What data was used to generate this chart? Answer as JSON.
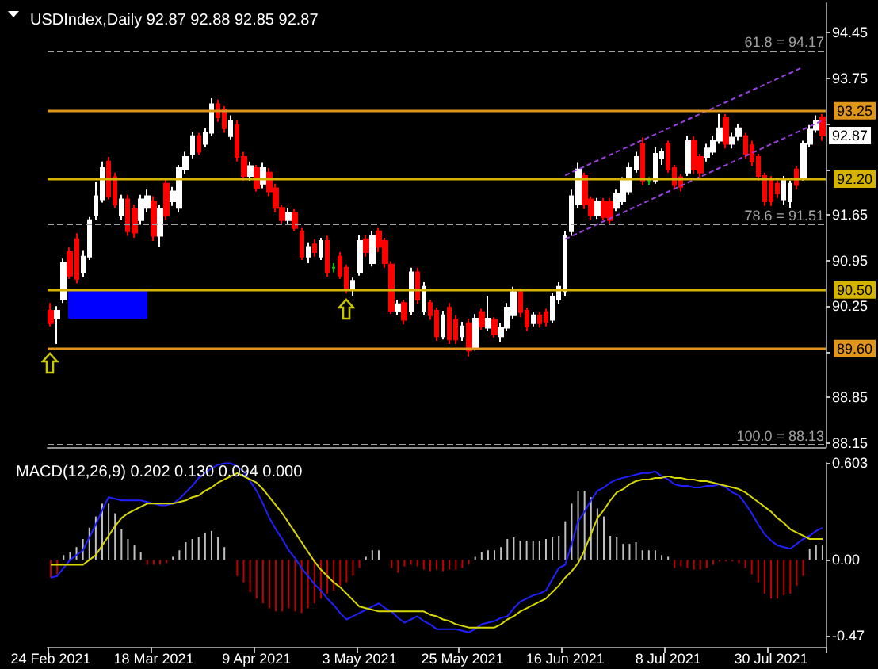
{
  "chart_data": [
    {
      "type": "candlestick",
      "title": "USDIndex,Daily 92.87 92.88 92.85 92.87",
      "categories": [
        null,
        null,
        null,
        null,
        null,
        null,
        null,
        null,
        null,
        null,
        null,
        null,
        null,
        null,
        null,
        null,
        null,
        null,
        null,
        null,
        null,
        null,
        null,
        null,
        null,
        null,
        null,
        null,
        null,
        null,
        null,
        null,
        null,
        null,
        null,
        null,
        null,
        null,
        null,
        null,
        null,
        null,
        null,
        null,
        null,
        null,
        null,
        null,
        null,
        null,
        null,
        null,
        null,
        null,
        null,
        null,
        null,
        null,
        null,
        null,
        null,
        null,
        null,
        null,
        null,
        null,
        null,
        null,
        null,
        null,
        null,
        null,
        null,
        null,
        null,
        null,
        null,
        null,
        null,
        null,
        null,
        null,
        null,
        null,
        null,
        null,
        null,
        null,
        null,
        null,
        null,
        null,
        null,
        null,
        null,
        null,
        null,
        null,
        null,
        null,
        null,
        null,
        null,
        null,
        null,
        null,
        null,
        null,
        null,
        null,
        null,
        null,
        null,
        null,
        null,
        null,
        null,
        null,
        null,
        null,
        null
      ],
      "ohlc": [
        [
          90.18,
          90.3,
          89.94,
          89.99
        ],
        [
          90.06,
          90.25,
          89.67,
          90.18
        ],
        [
          90.35,
          90.98,
          90.3,
          90.91
        ],
        [
          91.08,
          91.15,
          90.67,
          90.72
        ],
        [
          91.28,
          91.37,
          90.6,
          90.67
        ],
        [
          90.77,
          91.1,
          90.7,
          91.01
        ],
        [
          91.01,
          91.62,
          90.96,
          91.57
        ],
        [
          91.64,
          92.16,
          91.57,
          91.94
        ],
        [
          91.89,
          92.47,
          91.84,
          92.37
        ],
        [
          92.47,
          92.54,
          91.89,
          91.94
        ],
        [
          92.23,
          92.3,
          91.76,
          91.81
        ],
        [
          91.64,
          91.96,
          91.57,
          91.89
        ],
        [
          91.89,
          91.96,
          91.33,
          91.4
        ],
        [
          91.74,
          91.81,
          91.3,
          91.38
        ],
        [
          91.57,
          91.96,
          91.5,
          91.89
        ],
        [
          91.76,
          92.04,
          91.69,
          91.94
        ],
        [
          91.86,
          91.94,
          91.25,
          91.33
        ],
        [
          91.33,
          91.81,
          91.16,
          91.74
        ],
        [
          92.13,
          92.2,
          91.57,
          91.64
        ],
        [
          91.86,
          92.08,
          91.79,
          92.01
        ],
        [
          91.76,
          92.42,
          91.69,
          92.37
        ],
        [
          92.35,
          92.62,
          92.28,
          92.54
        ],
        [
          92.59,
          92.93,
          92.52,
          92.86
        ],
        [
          92.86,
          92.91,
          92.57,
          92.62
        ],
        [
          92.74,
          92.98,
          92.69,
          92.91
        ],
        [
          92.91,
          93.44,
          92.86,
          93.35
        ],
        [
          93.35,
          93.42,
          93.08,
          93.15
        ],
        [
          93.27,
          93.32,
          92.91,
          92.98
        ],
        [
          92.86,
          93.18,
          92.81,
          93.1
        ],
        [
          93.03,
          93.1,
          92.47,
          92.54
        ],
        [
          92.54,
          92.62,
          92.18,
          92.25
        ],
        [
          92.25,
          92.47,
          92.18,
          92.4
        ],
        [
          92.37,
          92.42,
          92.01,
          92.06
        ],
        [
          92.13,
          92.45,
          92.06,
          92.37
        ],
        [
          92.3,
          92.37,
          91.94,
          92.01
        ],
        [
          92.06,
          92.13,
          91.69,
          91.76
        ],
        [
          91.76,
          91.81,
          91.5,
          91.57
        ],
        [
          91.57,
          91.76,
          91.52,
          91.69
        ],
        [
          91.69,
          91.74,
          91.4,
          91.45
        ],
        [
          91.4,
          91.45,
          90.96,
          91.01
        ],
        [
          91.01,
          91.23,
          90.91,
          91.16
        ],
        [
          91.2,
          91.28,
          91.01,
          91.08
        ],
        [
          91.01,
          91.3,
          90.96,
          91.25
        ],
        [
          91.25,
          91.33,
          90.7,
          90.77
        ],
        [
          90.84,
          90.91,
          90.77,
          90.84
        ],
        [
          91.01,
          91.08,
          90.67,
          90.72
        ],
        [
          90.84,
          90.89,
          90.45,
          90.52
        ],
        [
          90.52,
          90.69,
          90.4,
          90.64
        ],
        [
          90.77,
          91.35,
          90.72,
          91.25
        ],
        [
          91.28,
          91.35,
          91.01,
          91.08
        ],
        [
          90.91,
          91.4,
          90.86,
          91.33
        ],
        [
          91.4,
          91.45,
          91.08,
          91.16
        ],
        [
          91.25,
          91.3,
          90.84,
          90.91
        ],
        [
          90.89,
          90.94,
          90.13,
          90.18
        ],
        [
          90.18,
          90.35,
          90.11,
          90.28
        ],
        [
          90.3,
          90.35,
          89.97,
          90.04
        ],
        [
          90.18,
          90.84,
          90.11,
          90.77
        ],
        [
          90.77,
          90.84,
          90.28,
          90.35
        ],
        [
          90.18,
          90.62,
          90.11,
          90.55
        ],
        [
          90.3,
          90.35,
          90.04,
          90.11
        ],
        [
          90.18,
          90.23,
          89.72,
          89.79
        ],
        [
          89.79,
          90.18,
          89.74,
          90.11
        ],
        [
          90.23,
          90.3,
          89.67,
          89.74
        ],
        [
          90.04,
          90.11,
          89.67,
          89.74
        ],
        [
          89.79,
          90.01,
          89.72,
          89.94
        ],
        [
          89.99,
          90.06,
          89.48,
          89.57
        ],
        [
          89.62,
          90.13,
          89.57,
          90.06
        ],
        [
          90.16,
          90.21,
          89.89,
          89.94
        ],
        [
          89.92,
          90.4,
          89.87,
          90.06
        ],
        [
          90.04,
          90.08,
          89.77,
          89.82
        ],
        [
          89.79,
          89.99,
          89.7,
          89.92
        ],
        [
          89.92,
          90.3,
          89.87,
          90.23
        ],
        [
          90.11,
          90.55,
          90.06,
          90.47
        ],
        [
          90.47,
          90.52,
          90.08,
          90.16
        ],
        [
          90.18,
          90.23,
          89.87,
          89.94
        ],
        [
          89.99,
          90.16,
          89.94,
          90.11
        ],
        [
          90.11,
          90.16,
          89.92,
          89.99
        ],
        [
          90.16,
          90.21,
          89.94,
          90.01
        ],
        [
          90.04,
          90.45,
          89.99,
          90.4
        ],
        [
          90.35,
          90.62,
          90.28,
          90.55
        ],
        [
          90.47,
          91.4,
          90.4,
          91.33
        ],
        [
          91.4,
          92.04,
          91.33,
          91.94
        ],
        [
          91.81,
          92.45,
          91.76,
          92.35
        ],
        [
          92.25,
          92.3,
          91.74,
          91.81
        ],
        [
          91.89,
          91.94,
          91.57,
          91.64
        ],
        [
          91.64,
          91.91,
          91.59,
          91.86
        ],
        [
          91.86,
          91.91,
          91.57,
          91.62
        ],
        [
          91.86,
          91.91,
          91.5,
          91.57
        ],
        [
          91.76,
          92.04,
          91.71,
          91.98
        ],
        [
          91.86,
          92.23,
          91.81,
          92.18
        ],
        [
          92.01,
          92.45,
          91.96,
          92.37
        ],
        [
          92.35,
          92.62,
          92.3,
          92.54
        ],
        [
          92.74,
          92.84,
          92.11,
          92.18
        ],
        [
          92.18,
          92.23,
          92.11,
          92.18
        ],
        [
          92.18,
          92.69,
          92.13,
          92.59
        ],
        [
          92.52,
          92.67,
          92.42,
          92.62
        ],
        [
          92.74,
          92.79,
          92.3,
          92.35
        ],
        [
          92.37,
          92.42,
          92.04,
          92.11
        ],
        [
          92.23,
          92.28,
          92.01,
          92.08
        ],
        [
          92.3,
          92.86,
          92.25,
          92.79
        ],
        [
          92.79,
          92.86,
          92.28,
          92.35
        ],
        [
          92.54,
          92.59,
          92.23,
          92.3
        ],
        [
          92.54,
          92.74,
          92.47,
          92.67
        ],
        [
          92.62,
          92.86,
          92.57,
          92.79
        ],
        [
          92.79,
          93.2,
          92.74,
          92.98
        ],
        [
          93.15,
          93.2,
          92.67,
          92.74
        ],
        [
          92.74,
          92.91,
          92.67,
          92.84
        ],
        [
          92.86,
          93.05,
          92.79,
          92.98
        ],
        [
          92.86,
          92.91,
          92.52,
          92.59
        ],
        [
          92.72,
          92.79,
          92.4,
          92.47
        ],
        [
          92.54,
          92.59,
          92.18,
          92.25
        ],
        [
          92.25,
          92.3,
          91.79,
          91.86
        ],
        [
          92.18,
          92.25,
          91.79,
          91.86
        ],
        [
          92.13,
          92.18,
          91.91,
          91.98
        ],
        [
          91.89,
          92.25,
          91.81,
          92.18
        ],
        [
          91.86,
          92.18,
          91.76,
          92.13
        ],
        [
          92.35,
          92.4,
          92.04,
          92.11
        ],
        [
          92.23,
          92.79,
          92.18,
          92.74
        ],
        [
          92.74,
          93.03,
          92.69,
          92.96
        ],
        [
          92.96,
          93.18,
          92.91,
          93.1
        ],
        [
          93.15,
          93.2,
          92.79,
          92.87
        ]
      ],
      "colors": [
        "#ff0000",
        "#ffffff",
        "#ffffff",
        "#ff0000",
        "#ff0000",
        "#ffffff",
        "#ffffff",
        "#ffffff",
        "#ffffff",
        "#ff0000",
        "#ff0000",
        "#ffffff",
        "#ff0000",
        "#ff0000",
        "#ffffff",
        "#ffffff",
        "#ff0000",
        "#ffffff",
        "#ff0000",
        "#ffffff",
        "#ffffff",
        "#ffffff",
        "#ffffff",
        "#ff0000",
        "#ffffff",
        "#ffffff",
        "#ff0000",
        "#ff0000",
        "#ffffff",
        "#ff0000",
        "#ff0000",
        "#ffffff",
        "#ff0000",
        "#ffffff",
        "#ff0000",
        "#ff0000",
        "#ff0000",
        "#ffffff",
        "#ff0000",
        "#ff0000",
        "#ffffff",
        "#ff0000",
        "#ffffff",
        "#ff0000",
        "#00c000",
        "#ff0000",
        "#ff0000",
        "#ffffff",
        "#ffffff",
        "#ff0000",
        "#ffffff",
        "#ff0000",
        "#ff0000",
        "#ff0000",
        "#ffffff",
        "#ff0000",
        "#ffffff",
        "#ff0000",
        "#ffffff",
        "#ff0000",
        "#ff0000",
        "#ffffff",
        "#ff0000",
        "#ff0000",
        "#ffffff",
        "#ff0000",
        "#ffffff",
        "#ff0000",
        "#ffffff",
        "#ff0000",
        "#ffffff",
        "#ffffff",
        "#ffffff",
        "#ff0000",
        "#ff0000",
        "#ffffff",
        "#ff0000",
        "#ff0000",
        "#ffffff",
        "#ffffff",
        "#ffffff",
        "#ffffff",
        "#ffffff",
        "#ff0000",
        "#ff0000",
        "#ffffff",
        "#ff0000",
        "#ff0000",
        "#ffffff",
        "#ffffff",
        "#ffffff",
        "#ffffff",
        "#ff0000",
        "#00c000",
        "#ffffff",
        "#ffffff",
        "#ff0000",
        "#ff0000",
        "#ff0000",
        "#ffffff",
        "#ff0000",
        "#ff0000",
        "#ffffff",
        "#ffffff",
        "#ffffff",
        "#ff0000",
        "#ffffff",
        "#ffffff",
        "#ff0000",
        "#ff0000",
        "#ff0000",
        "#ff0000",
        "#ff0000",
        "#ff0000",
        "#ffffff",
        "#ffffff",
        "#ff0000",
        "#ffffff",
        "#ffffff",
        "#ffffff",
        "#ff0000"
      ],
      "series": [
        {
          "type": "line",
          "color": "#9b40e0",
          "line_style": "dashed",
          "values": [
            null,
            null,
            null,
            null,
            null,
            null,
            null,
            null,
            null,
            null,
            null,
            null,
            null,
            null,
            null,
            null,
            null,
            null,
            null,
            null,
            null,
            null,
            null,
            null,
            null,
            null,
            null,
            null,
            null,
            null,
            null,
            null,
            null,
            null,
            null,
            null,
            null,
            null,
            null,
            null,
            null,
            null,
            null,
            null,
            null,
            null,
            null,
            null,
            null,
            null,
            null,
            null,
            null,
            null,
            null,
            null,
            null,
            null,
            null,
            null,
            null,
            null,
            null,
            null,
            null,
            null,
            null,
            null,
            null,
            null,
            null,
            null,
            null,
            null,
            null,
            null,
            null,
            null,
            null,
            null,
            92.26,
            null,
            null,
            null,
            null,
            null,
            null,
            null,
            null,
            null,
            null,
            null,
            null,
            null,
            null,
            null,
            null,
            null,
            null,
            null,
            null,
            null,
            null,
            null,
            null,
            null,
            null,
            null,
            null,
            null,
            null,
            null,
            null,
            null,
            null,
            null,
            null,
            93.92,
            null,
            null,
            null
          ]
        },
        {
          "type": "line",
          "color": "#9b40e0",
          "line_style": "dashed",
          "values": [
            null,
            null,
            null,
            null,
            null,
            null,
            null,
            null,
            null,
            null,
            null,
            null,
            null,
            null,
            null,
            null,
            null,
            null,
            null,
            null,
            null,
            null,
            null,
            null,
            null,
            null,
            null,
            null,
            null,
            null,
            null,
            null,
            null,
            null,
            null,
            null,
            null,
            null,
            null,
            null,
            null,
            null,
            null,
            null,
            null,
            null,
            null,
            null,
            null,
            null,
            null,
            null,
            null,
            null,
            null,
            null,
            null,
            null,
            null,
            null,
            null,
            null,
            null,
            null,
            null,
            null,
            null,
            null,
            null,
            null,
            null,
            null,
            null,
            null,
            null,
            null,
            null,
            null,
            null,
            null,
            91.28,
            null,
            null,
            null,
            null,
            null,
            null,
            null,
            null,
            null,
            null,
            null,
            null,
            null,
            null,
            null,
            null,
            null,
            null,
            null,
            null,
            null,
            null,
            null,
            null,
            null,
            null,
            null,
            null,
            null,
            null,
            null,
            null,
            null,
            null,
            null,
            null,
            null,
            null,
            null,
            93.1
          ]
        }
      ],
      "marker": "none",
      "ylim": [
        88.09,
        94.9
      ],
      "yticks": [
        94.45,
        93.75,
        {
          "value": 93.05,
          "label": null
        },
        {
          "value": 92.35,
          "label": null
        },
        91.65,
        90.95,
        90.25,
        {
          "value": 89.55,
          "label": null
        },
        88.85,
        88.15
      ],
      "tick_labels": "y",
      "ref_lines": [
        {
          "axis": "y",
          "value": 94.17,
          "label": "61.8 = 94.17",
          "color": "#a0a0a0",
          "line_style": "dashed"
        },
        {
          "axis": "y",
          "value": 93.25,
          "label": "93.25",
          "color": "#e0961c",
          "line_style": "solid"
        },
        {
          "axis": "y",
          "value": 92.2,
          "label": "92.20",
          "color": "#d4b400",
          "line_style": "solid"
        },
        {
          "axis": "y",
          "value": 91.51,
          "label": "78.6 = 91.51",
          "color": "#a0a0a0",
          "line_style": "dashed"
        },
        {
          "axis": "y",
          "value": 90.5,
          "label": "90.50",
          "color": "#d4b400",
          "line_style": "solid"
        },
        {
          "axis": "y",
          "value": 89.6,
          "label": "89.60",
          "color": "#e0961c",
          "line_style": "solid"
        },
        {
          "axis": "y",
          "value": 88.13,
          "label": "100.0 = 88.13",
          "color": "#a0a0a0",
          "line_style": "dashed"
        }
      ],
      "annotations": [
        {
          "text": "92.87",
          "y": 92.87
        }
      ]
    },
    {
      "type": "bar",
      "title": "MACD(12,26,9) 0.202 0.130 0.094 0.000",
      "categories": [
        "24 Feb 2021",
        null,
        null,
        null,
        null,
        null,
        null,
        null,
        null,
        null,
        null,
        null,
        null,
        null,
        null,
        null,
        "18 Mar 2021",
        null,
        null,
        null,
        null,
        null,
        null,
        null,
        null,
        null,
        null,
        null,
        null,
        null,
        null,
        null,
        "9 Apr 2021",
        null,
        null,
        null,
        null,
        null,
        null,
        null,
        null,
        null,
        null,
        null,
        null,
        null,
        null,
        null,
        "3 May 2021",
        null,
        null,
        null,
        null,
        null,
        null,
        null,
        null,
        null,
        null,
        null,
        null,
        null,
        null,
        null,
        "25 May 2021",
        null,
        null,
        null,
        null,
        null,
        null,
        null,
        null,
        null,
        null,
        null,
        null,
        null,
        null,
        null,
        "16 Jun 2021",
        null,
        null,
        null,
        null,
        null,
        null,
        null,
        null,
        null,
        null,
        null,
        null,
        null,
        null,
        null,
        "8 Jul 2021",
        null,
        null,
        null,
        null,
        null,
        null,
        null,
        null,
        null,
        null,
        null,
        null,
        null,
        null,
        null,
        "30 Jul 2021",
        null,
        null,
        null,
        null,
        null,
        null,
        null,
        null
      ],
      "series": [
        {
          "type": "bar",
          "color": "#c0c0c0",
          "values": [
            null,
            null,
            0.03,
            0.05,
            0.08,
            0.13,
            0.2,
            0.27,
            0.35,
            0.35,
            0.29,
            0.19,
            0.13,
            0.09,
            0.05,
            null,
            null,
            null,
            null,
            0.02,
            0.06,
            0.11,
            0.13,
            0.14,
            0.17,
            0.18,
            0.14,
            0.08,
            0,
            null,
            null,
            null,
            null,
            null,
            null,
            null,
            null,
            null,
            null,
            null,
            null,
            null,
            null,
            null,
            null,
            null,
            null,
            null,
            null,
            0.02,
            0.06,
            0.06,
            0,
            null,
            null,
            null,
            null,
            null,
            null,
            null,
            null,
            null,
            null,
            null,
            null,
            null,
            0.02,
            0.05,
            0.06,
            0.06,
            0.08,
            0.13,
            0.14,
            0.12,
            0.12,
            0.12,
            0.12,
            0.13,
            0.14,
            0.15,
            0.24,
            0.35,
            0.43,
            0.43,
            0.39,
            0.32,
            0.27,
            0.15,
            0.14,
            0.1,
            0.1,
            0.11,
            0.06,
            0.06,
            0.06,
            0.03,
            0.02,
            null,
            null,
            null,
            null,
            null,
            null,
            null,
            null,
            null,
            null,
            null,
            null,
            null,
            null,
            null,
            null,
            null,
            null,
            null,
            null,
            null,
            0.07,
            0.09,
            0.09
          ]
        },
        {
          "type": "bar",
          "color": "#c00000",
          "values": [
            -0.11,
            -0.09,
            null,
            null,
            null,
            null,
            null,
            null,
            null,
            null,
            null,
            null,
            null,
            null,
            null,
            -0.03,
            -0.03,
            -0.03,
            -0.02,
            null,
            null,
            null,
            null,
            null,
            null,
            null,
            null,
            null,
            null,
            -0.1,
            -0.14,
            -0.2,
            -0.24,
            -0.27,
            -0.3,
            -0.32,
            -0.32,
            -0.3,
            -0.32,
            -0.33,
            -0.3,
            -0.27,
            -0.24,
            -0.21,
            -0.19,
            -0.16,
            -0.14,
            -0.1,
            -0.05,
            null,
            null,
            null,
            null,
            -0.05,
            -0.08,
            -0.04,
            -0.03,
            -0.04,
            -0.06,
            -0.07,
            -0.06,
            -0.07,
            -0.06,
            -0.06,
            -0.05,
            -0.03,
            null,
            null,
            null,
            null,
            null,
            null,
            null,
            null,
            null,
            null,
            null,
            null,
            null,
            null,
            null,
            null,
            null,
            null,
            null,
            null,
            null,
            null,
            null,
            null,
            null,
            null,
            null,
            null,
            null,
            null,
            null,
            -0.05,
            -0.04,
            -0.05,
            -0.06,
            -0.06,
            -0.05,
            -0.03,
            -0.01,
            -0.01,
            -0.01,
            -0.02,
            -0.05,
            -0.09,
            -0.14,
            -0.21,
            -0.24,
            -0.24,
            -0.22,
            -0.21,
            -0.16,
            -0.1,
            null,
            null,
            null
          ]
        },
        {
          "type": "line",
          "color": "#2020ff",
          "values": [
            -0.11,
            -0.1,
            -0.05,
            0.0,
            0.03,
            0.06,
            0.14,
            0.22,
            0.31,
            0.39,
            0.38,
            0.37,
            0.37,
            0.37,
            0.37,
            0.36,
            0.35,
            0.34,
            0.34,
            0.35,
            0.38,
            0.42,
            0.46,
            0.51,
            0.54,
            0.57,
            0.59,
            0.6,
            0.6,
            0.58,
            0.55,
            0.49,
            0.43,
            0.35,
            0.26,
            0.19,
            0.13,
            0.06,
            0.01,
            -0.05,
            -0.1,
            -0.15,
            -0.19,
            -0.24,
            -0.28,
            -0.33,
            -0.37,
            -0.35,
            -0.33,
            -0.31,
            -0.29,
            -0.27,
            -0.3,
            -0.32,
            -0.36,
            -0.39,
            -0.37,
            -0.35,
            -0.38,
            -0.4,
            -0.43,
            -0.43,
            -0.43,
            -0.43,
            -0.44,
            -0.45,
            -0.43,
            -0.4,
            -0.39,
            -0.38,
            -0.36,
            -0.35,
            -0.3,
            -0.26,
            -0.24,
            -0.22,
            -0.21,
            -0.19,
            -0.12,
            -0.05,
            -0.03,
            0.1,
            0.24,
            0.3,
            0.37,
            0.43,
            0.45,
            0.48,
            0.5,
            0.51,
            0.52,
            0.53,
            0.54,
            0.54,
            0.55,
            0.52,
            0.5,
            0.47,
            0.46,
            0.46,
            0.45,
            0.45,
            0.46,
            0.46,
            0.47,
            0.45,
            0.42,
            0.4,
            0.35,
            0.29,
            0.22,
            0.16,
            0.12,
            0.09,
            0.08,
            0.07,
            0.1,
            0.13,
            0.15,
            0.18,
            0.2
          ]
        },
        {
          "type": "line",
          "color": "#d8d800",
          "values": [
            -0.03,
            -0.03,
            -0.03,
            -0.03,
            -0.03,
            -0.03,
            0.0,
            0.03,
            0.09,
            0.15,
            0.21,
            0.26,
            0.29,
            0.31,
            0.33,
            0.35,
            0.35,
            0.35,
            0.35,
            0.35,
            0.36,
            0.37,
            0.39,
            0.4,
            0.43,
            0.45,
            0.48,
            0.5,
            0.52,
            0.54,
            0.52,
            0.5,
            0.48,
            0.44,
            0.39,
            0.34,
            0.29,
            0.23,
            0.17,
            0.11,
            0.05,
            -0.01,
            -0.06,
            -0.1,
            -0.14,
            -0.17,
            -0.21,
            -0.25,
            -0.29,
            -0.3,
            -0.31,
            -0.32,
            -0.32,
            -0.32,
            -0.32,
            -0.32,
            -0.32,
            -0.32,
            -0.32,
            -0.34,
            -0.35,
            -0.37,
            -0.38,
            -0.4,
            -0.41,
            -0.42,
            -0.42,
            -0.42,
            -0.42,
            -0.42,
            -0.4,
            -0.37,
            -0.35,
            -0.32,
            -0.3,
            -0.28,
            -0.26,
            -0.24,
            -0.2,
            -0.16,
            -0.11,
            -0.07,
            -0.02,
            0.06,
            0.16,
            0.26,
            0.31,
            0.37,
            0.42,
            0.44,
            0.47,
            0.49,
            0.5,
            0.5,
            0.51,
            0.51,
            0.52,
            0.51,
            0.51,
            0.5,
            0.5,
            0.49,
            0.49,
            0.48,
            0.47,
            0.46,
            0.45,
            0.44,
            0.42,
            0.39,
            0.36,
            0.33,
            0.3,
            0.26,
            0.23,
            0.19,
            0.17,
            0.15,
            0.13,
            0.13,
            0.13
          ]
        }
      ],
      "marker": "none",
      "ylim": [
        -0.54,
        0.603
      ],
      "yticks": [
        0.603,
        {
          "value": 0,
          "label": "0.00"
        },
        -0.47
      ]
    }
  ]
}
